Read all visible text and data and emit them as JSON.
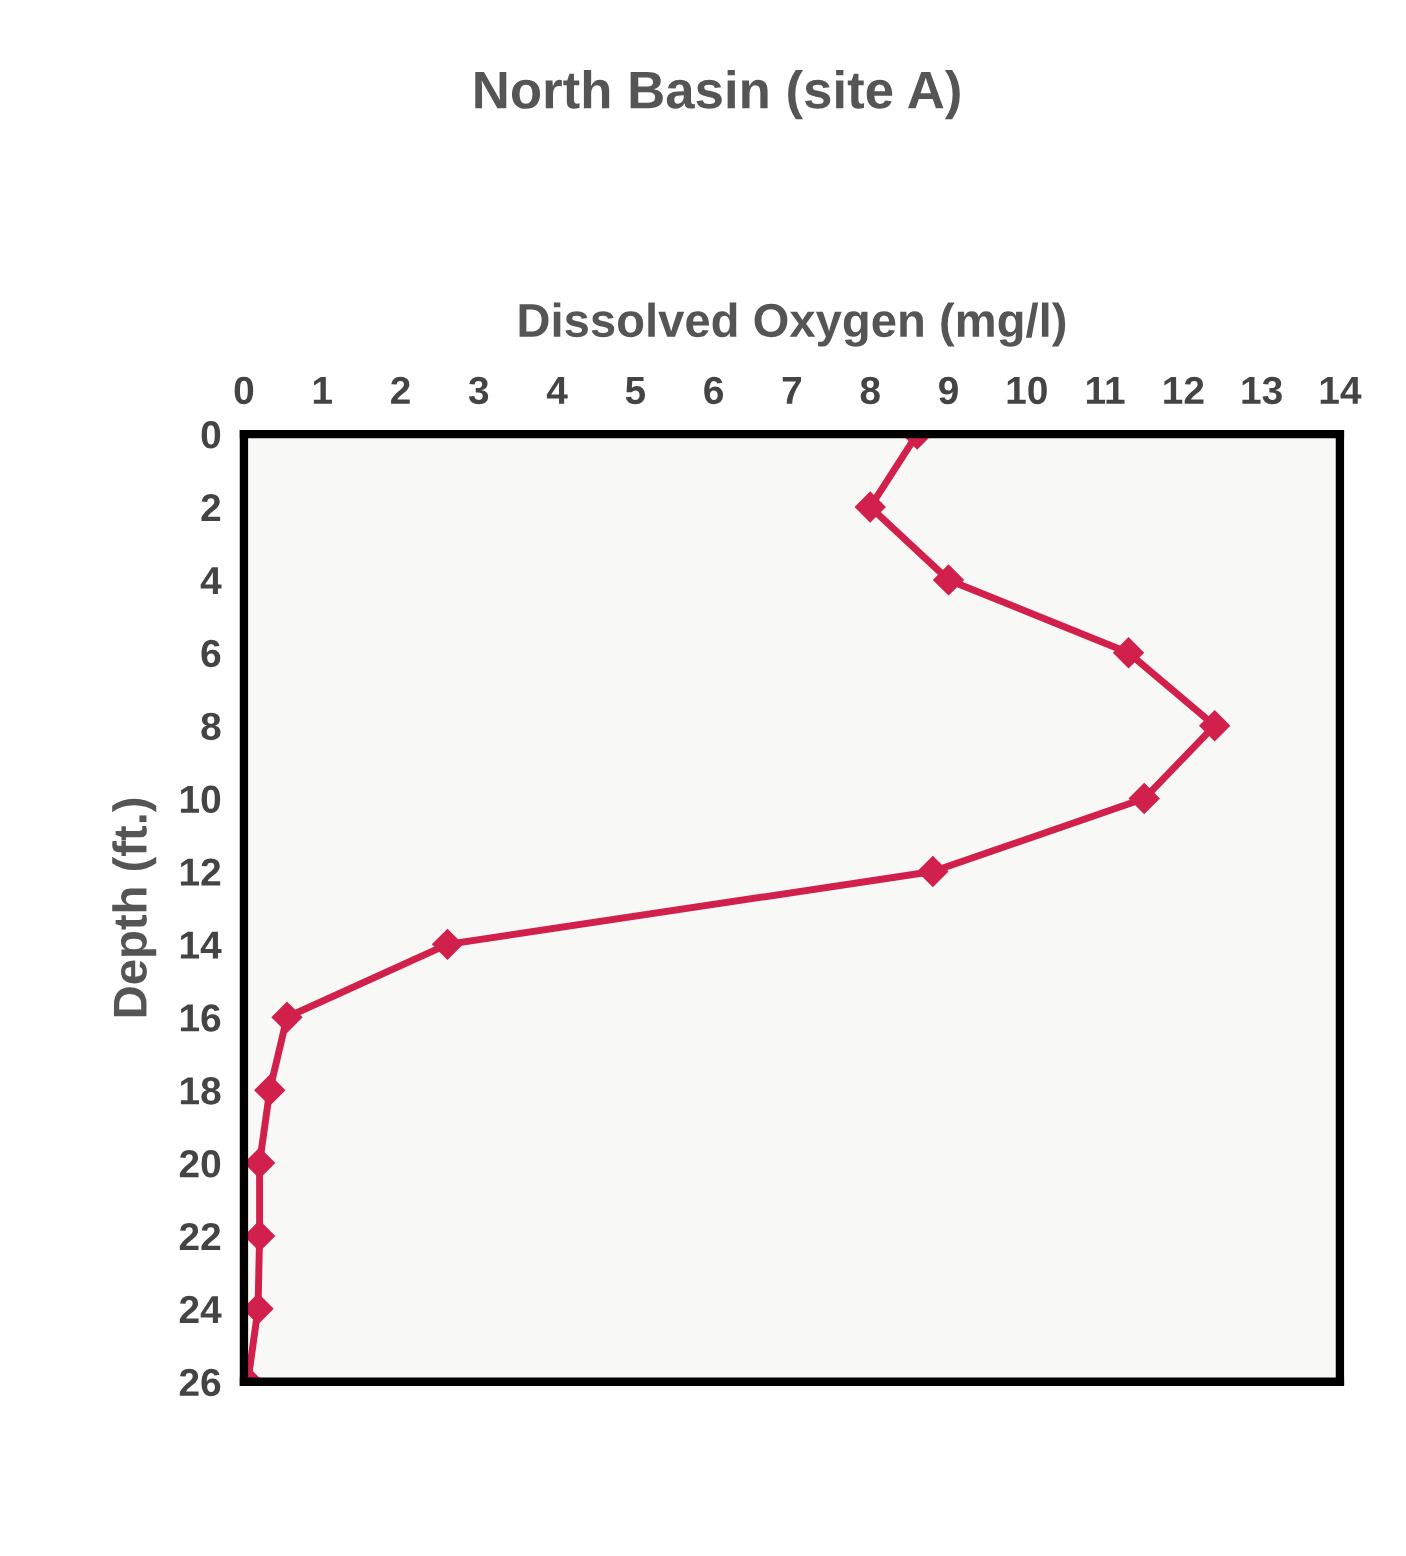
{
  "chart_data": {
    "type": "line",
    "title": "North Basin (site A)",
    "xlabel": "Dissolved Oxygen (mg/l)",
    "ylabel": "Depth (ft.)",
    "x": [
      8.6,
      8.0,
      9.0,
      11.3,
      12.4,
      11.5,
      8.8,
      2.6,
      0.55,
      0.33,
      0.2,
      0.2,
      0.18,
      0.05
    ],
    "series": [
      {
        "color": "#d2204c",
        "values": [
          0,
          2,
          4,
          6,
          8,
          10,
          12,
          14,
          16,
          18,
          20,
          22,
          24,
          26
        ]
      }
    ],
    "xlim": [
      0,
      14
    ],
    "xticks": [
      0,
      1,
      2,
      3,
      4,
      5,
      6,
      7,
      8,
      9,
      10,
      11,
      12,
      13,
      14
    ],
    "ylim": [
      26,
      0
    ],
    "yticks": [
      0,
      2,
      4,
      6,
      8,
      10,
      12,
      14,
      16,
      18,
      20,
      22,
      24,
      26
    ],
    "grid": false,
    "legend": false,
    "marker": "diamond",
    "line_style": "solid"
  }
}
